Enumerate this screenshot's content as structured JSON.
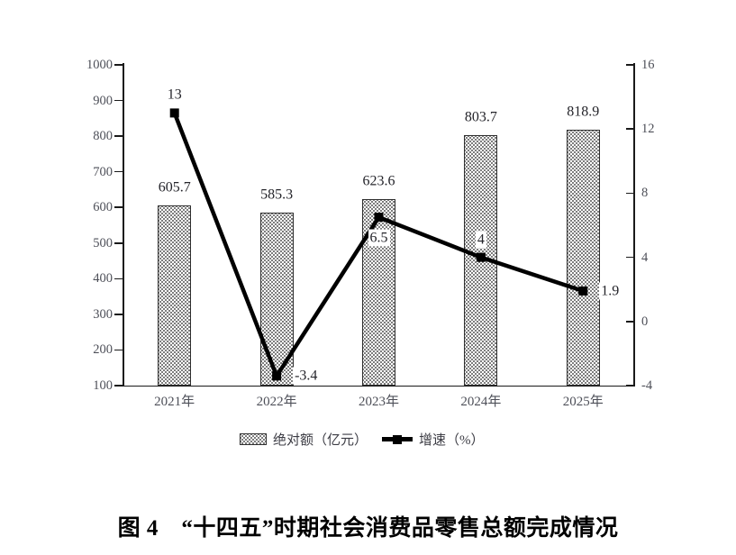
{
  "figure_caption": "图 4　“十四五”时期社会消费品零售总额完成情况",
  "chart_data": {
    "type": "bar",
    "subtype": "bar-line-combo",
    "categories": [
      "2021年",
      "2022年",
      "2023年",
      "2024年",
      "2025年"
    ],
    "series": [
      {
        "name": "绝对额（亿元）",
        "type": "bar",
        "axis": "left",
        "values": [
          605.7,
          585.3,
          623.6,
          803.7,
          818.9
        ],
        "data_labels": [
          "605.7",
          "585.3",
          "623.6",
          "803.7",
          "818.9"
        ],
        "fill": "dotted-pattern",
        "color": "#000000"
      },
      {
        "name": "增速（%）",
        "type": "line",
        "axis": "right",
        "values": [
          13,
          -3.4,
          6.5,
          4,
          1.9
        ],
        "data_labels": [
          "13",
          "-3.4",
          "6.5",
          "4",
          "1.9"
        ],
        "label_positions": [
          "above",
          "right",
          "below",
          "above",
          "right"
        ],
        "marker": "square",
        "color": "#000000"
      }
    ],
    "left_axis": {
      "min": 100,
      "max": 1000,
      "step": 100,
      "tick_labels": [
        "1000",
        "900",
        "800",
        "700",
        "600",
        "500",
        "400",
        "300",
        "200",
        "100"
      ]
    },
    "right_axis": {
      "min": -4,
      "max": 16,
      "step": 4,
      "tick_labels": [
        "16",
        "12",
        "8",
        "4",
        "0",
        "-4"
      ]
    },
    "gridlines": false,
    "legend_position": "bottom",
    "colors": {
      "axis_text": "#4d4f58",
      "data_label_text": "#24242a",
      "line": "#000000",
      "bar_border": "#2e2e2e",
      "background": "#ffffff"
    }
  }
}
